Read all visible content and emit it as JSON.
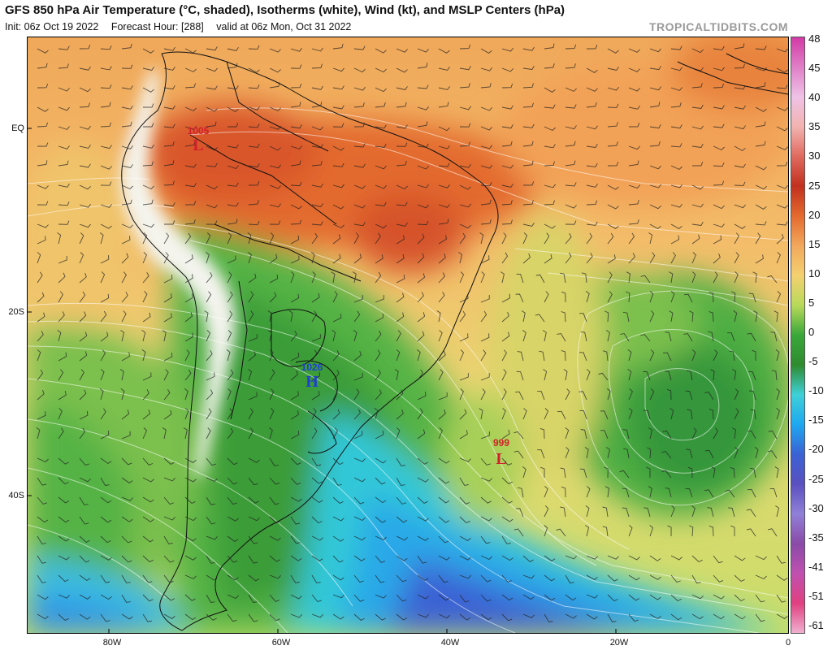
{
  "header": {
    "title": "GFS 850 hPa Air Temperature (°C, shaded), Isotherms (white), Wind (kt), and MSLP Centers (hPa)",
    "init": "Init: 06z Oct 19 2022",
    "forecast_hour": "Forecast Hour: [288]",
    "valid": "valid at 06z Mon, Oct 31 2022",
    "credit": "TROPICALTIDBITS.COM"
  },
  "axes": {
    "lat_labels": [
      "EQ",
      "20S",
      "40S"
    ],
    "lon_labels": [
      "80W",
      "60W",
      "40W",
      "20W",
      "0"
    ]
  },
  "colorbar": {
    "labels": [
      "48",
      "45",
      "40",
      "35",
      "30",
      "25",
      "20",
      "15",
      "10",
      "5",
      "0",
      "-5",
      "-10",
      "-15",
      "-20",
      "-25",
      "-30",
      "-35",
      "-41",
      "-51",
      "-61"
    ],
    "colors": [
      "#d33aa6",
      "#e07fc7",
      "#efc2e6",
      "#f2b3b0",
      "#e06a5f",
      "#c2301e",
      "#e46a2e",
      "#f2a85c",
      "#f4d070",
      "#b8d95a",
      "#3aa83a",
      "#2e8b2e",
      "#3fd0d8",
      "#1ea8f0",
      "#3a62d4",
      "#5a50c0",
      "#9080d8",
      "#8a4aa8",
      "#c050b0",
      "#e04080",
      "#f0b0d0"
    ]
  },
  "pressure_centers": [
    {
      "type": "L",
      "value": "1005",
      "color": "#d0202a"
    },
    {
      "type": "H",
      "value": "1026",
      "color": "#1f3fd0"
    },
    {
      "type": "L",
      "value": "999",
      "color": "#d0202a"
    }
  ]
}
